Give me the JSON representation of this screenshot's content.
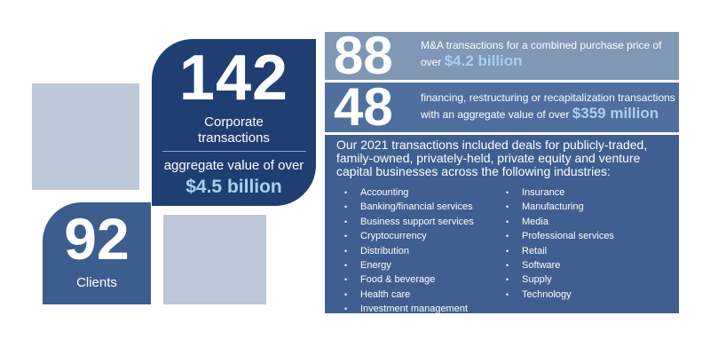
{
  "tiles": {
    "corporate": {
      "number": "142",
      "label_line1": "Corporate",
      "label_line2": "transactions",
      "aggregate_text": "aggregate value of over",
      "aggregate_value": "$4.5 billion"
    },
    "clients": {
      "number": "92",
      "label": "Clients"
    }
  },
  "stats": {
    "ma": {
      "number": "88",
      "line1": "M&A transactions for a combined purchase price of",
      "line2_prefix": "over ",
      "highlight": "$4.2 billion"
    },
    "financing": {
      "number": "48",
      "line1": "financing, restructuring or recapitalization transactions",
      "line2_prefix": "with an aggregate value of over ",
      "highlight": "$359 million"
    }
  },
  "industries": {
    "intro": "Our 2021 transactions included deals for publicly-traded, family-owned, privately-held, private equity and venture capital businesses across the following industries:",
    "bullet": "•",
    "column1": [
      "Accounting",
      "Banking/financial services",
      "Business support services",
      "Cryptocurrency",
      "Distribution",
      "Energy",
      "Food & beverage",
      "Health care",
      "Investment management"
    ],
    "column2": [
      "Insurance",
      "Manufacturing",
      "Media",
      "Professional services",
      "Retail",
      "Software",
      "Supply",
      "Technology"
    ]
  },
  "colors": {
    "dark_navy": "#1f3f72",
    "mid_blue": "#3b5e8e",
    "light_steel": "#8097b6",
    "pale_square": "#bcc8d8",
    "highlight": "#a9d1ee"
  }
}
